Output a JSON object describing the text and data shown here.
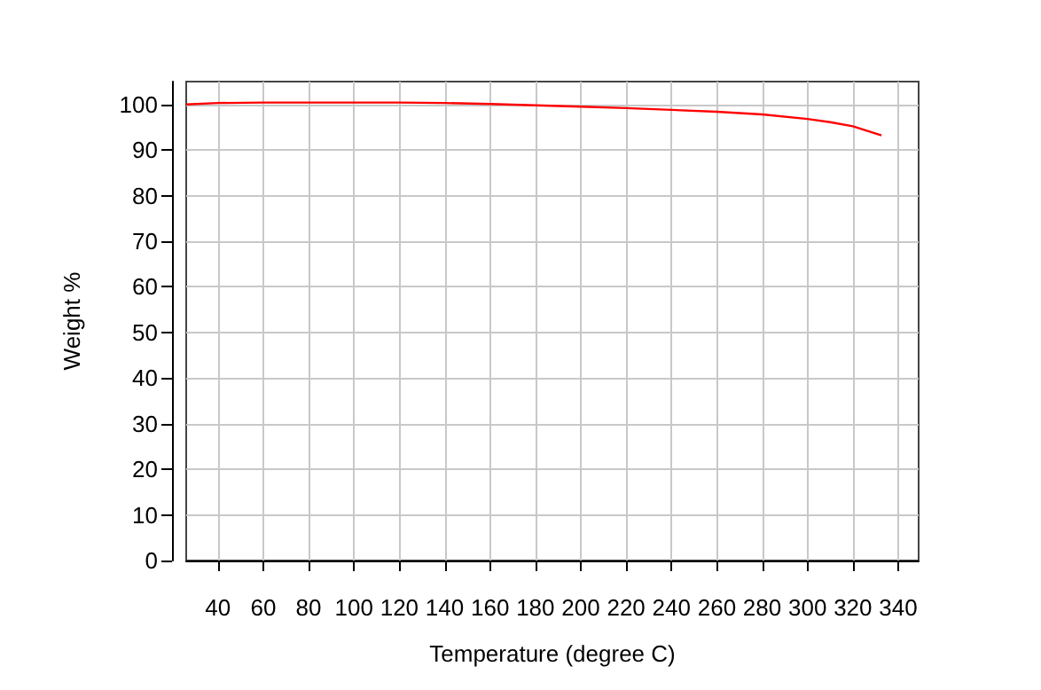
{
  "chart_data": {
    "type": "line",
    "xlabel": "Temperature (degree C)",
    "ylabel": "Weight %",
    "series": [
      {
        "color": "#ff0000",
        "x": [
          26,
          40,
          60,
          80,
          100,
          120,
          140,
          160,
          180,
          200,
          220,
          240,
          260,
          280,
          300,
          310,
          320,
          332.6
        ],
        "values": [
          100,
          100.3,
          100.4,
          100.4,
          100.4,
          100.4,
          100.3,
          100.1,
          99.8,
          99.5,
          99.2,
          98.8,
          98.4,
          97.8,
          96.8,
          96.1,
          95.2,
          93.2
        ]
      }
    ],
    "xlim": [
      26,
      349
    ],
    "xticks": [
      40,
      60,
      80,
      100,
      120,
      140,
      160,
      180,
      200,
      220,
      240,
      260,
      280,
      300,
      320,
      340
    ],
    "ylim": [
      0,
      105
    ],
    "yticks": [
      0,
      10,
      20,
      30,
      40,
      50,
      60,
      70,
      80,
      90,
      100
    ],
    "grid": true,
    "marker": "none",
    "line_style": "solid"
  }
}
